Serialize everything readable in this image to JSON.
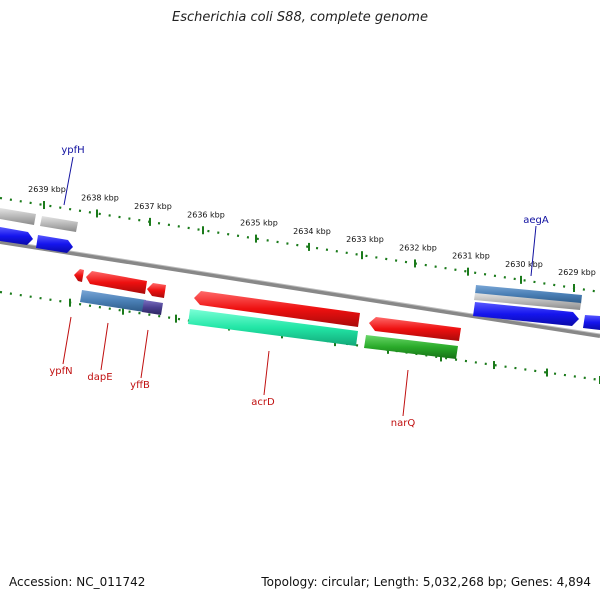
{
  "title": "Escherichia coli S88, complete genome",
  "accession_text": "Accession: NC_011742",
  "topology_text": "Topology: circular",
  "length_text": "Length: 5,032,268 bp",
  "genes_text": "Genes: 4,894",
  "colors": {
    "backbone": "#888888",
    "tick": "#1a7a1a",
    "forward_label": "#1010a0",
    "reverse_label": "#c01010",
    "blue": "#1515ee",
    "red": "#ee1010",
    "steel": "#4a7fb5",
    "grey": "#b8b8b8",
    "teal": "#22e6a6",
    "green": "#2aaa2a",
    "purple": "#4a3f8f"
  },
  "ticks": [
    {
      "label": "2639 kbp",
      "pos": 2639
    },
    {
      "label": "2638 kbp",
      "pos": 2638
    },
    {
      "label": "2637 kbp",
      "pos": 2637
    },
    {
      "label": "2636 kbp",
      "pos": 2636
    },
    {
      "label": "2635 kbp",
      "pos": 2635
    },
    {
      "label": "2634 kbp",
      "pos": 2634
    },
    {
      "label": "2633 kbp",
      "pos": 2633
    },
    {
      "label": "2632 kbp",
      "pos": 2632
    },
    {
      "label": "2631 kbp",
      "pos": 2631
    },
    {
      "label": "2630 kbp",
      "pos": 2630
    },
    {
      "label": "2629 kbp",
      "pos": 2629
    }
  ],
  "forward_labels": [
    {
      "name": "ypfH"
    },
    {
      "name": "aegA"
    }
  ],
  "reverse_labels": [
    {
      "name": "ypfN"
    },
    {
      "name": "dapE"
    },
    {
      "name": "yffB"
    },
    {
      "name": "acrD"
    },
    {
      "name": "narQ"
    }
  ]
}
